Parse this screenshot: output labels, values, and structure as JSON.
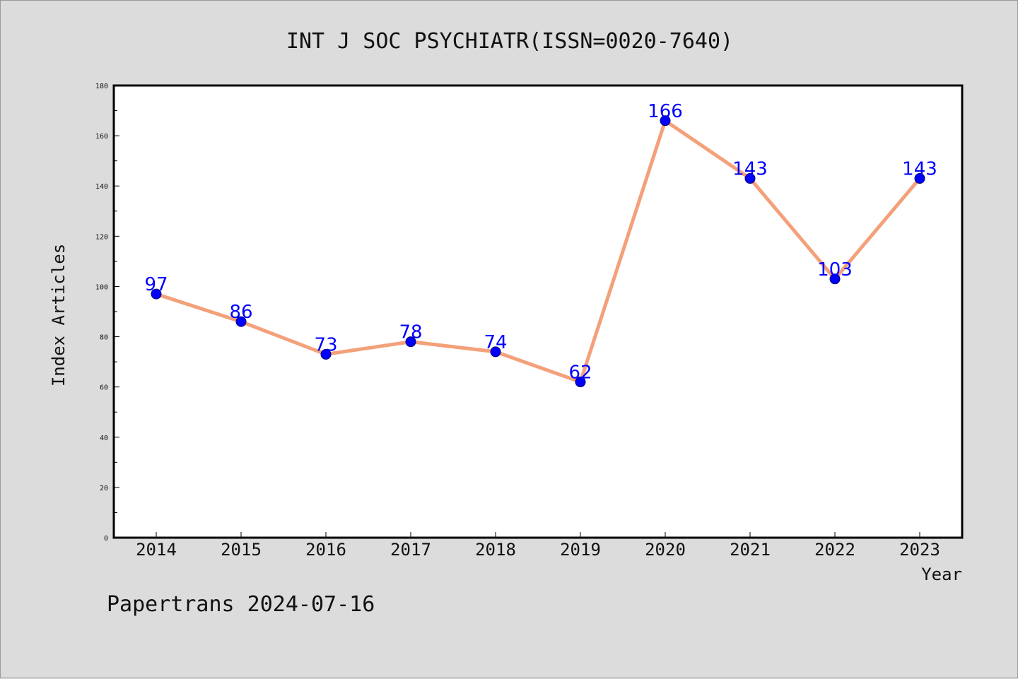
{
  "chart_data": {
    "type": "line",
    "title": "INT J SOC PSYCHIATR(ISSN=0020-7640)",
    "xlabel": "Year",
    "ylabel": "Index Articles",
    "categories": [
      "2014",
      "2015",
      "2016",
      "2017",
      "2018",
      "2019",
      "2020",
      "2021",
      "2022",
      "2023"
    ],
    "series": [
      {
        "values": [
          97,
          86,
          73,
          78,
          74,
          62,
          166,
          143,
          103,
          143
        ]
      }
    ],
    "ylim": [
      0,
      180
    ],
    "yticks": [
      0,
      20,
      40,
      60,
      80,
      100,
      120,
      140,
      160,
      180
    ],
    "line_color": "#f4a07a",
    "marker_color": "#0000ff",
    "label_color": "#0000ff",
    "grid": false,
    "legend": "none"
  },
  "footer": {
    "text": "Papertrans 2024-07-16"
  }
}
